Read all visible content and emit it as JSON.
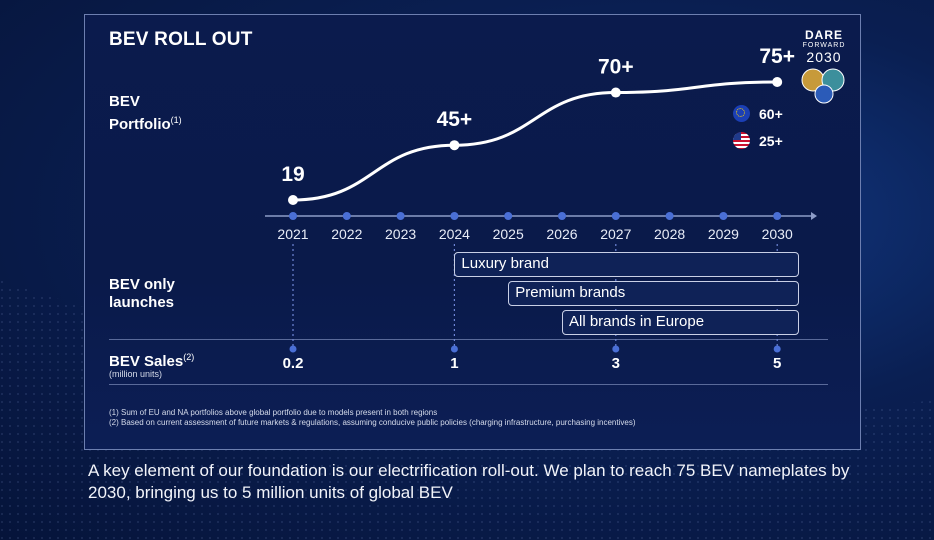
{
  "slide": {
    "title": "BEV ROLL OUT",
    "portfolio_label_1": "BEV",
    "portfolio_label_2": "Portfolio",
    "portfolio_sup": "(1)",
    "launches_label_1": "BEV only",
    "launches_label_2": "launches",
    "sales_label": "BEV Sales",
    "sales_sup": "(2)",
    "sales_sublabel": "(million units)",
    "logo": {
      "line1": "DARE",
      "line2": "FORWARD",
      "line3": "2030"
    },
    "legend": [
      {
        "icon": "eu-flag-icon",
        "value": "60+"
      },
      {
        "icon": "us-flag-icon",
        "value": "25+"
      }
    ],
    "launch_bars": [
      {
        "label": "Luxury brand",
        "start": "2024"
      },
      {
        "label": "Premium brands",
        "start": "2025"
      },
      {
        "label": "All brands in Europe",
        "start": "2026"
      }
    ],
    "footnotes": [
      "(1) Sum of EU and NA portfolios above global portfolio due to models present in both regions",
      "(2) Based on current assessment of future markets & regulations, assuming conducive public policies (charging infrastructure, purchasing incentives)"
    ]
  },
  "chart_data": {
    "type": "line",
    "title": "BEV ROLL OUT",
    "x": [
      "2021",
      "2022",
      "2023",
      "2024",
      "2025",
      "2026",
      "2027",
      "2028",
      "2029",
      "2030"
    ],
    "series": [
      {
        "name": "BEV Portfolio",
        "points": [
          {
            "x": "2021",
            "y": 19,
            "label": "19"
          },
          {
            "x": "2024",
            "y": 45,
            "label": "45+"
          },
          {
            "x": "2027",
            "y": 70,
            "label": "70+"
          },
          {
            "x": "2030",
            "y": 75,
            "label": "75+"
          }
        ]
      },
      {
        "name": "BEV Sales",
        "unit": "million units",
        "points": [
          {
            "x": "2021",
            "y": 0.2,
            "label": "0.2"
          },
          {
            "x": "2024",
            "y": 1,
            "label": "1"
          },
          {
            "x": "2027",
            "y": 3,
            "label": "3"
          },
          {
            "x": "2030",
            "y": 5,
            "label": "5"
          }
        ]
      }
    ],
    "ylim": [
      19,
      75
    ],
    "colors": {
      "line": "#ffffff",
      "axis_dot": "#4a6fd6",
      "dotted_guide": "#6f86d6"
    }
  },
  "caption": "A key element of our foundation is our electrification roll-out. We plan to reach 75 BEV nameplates by 2030, bringing us to 5 million units of global BEV"
}
